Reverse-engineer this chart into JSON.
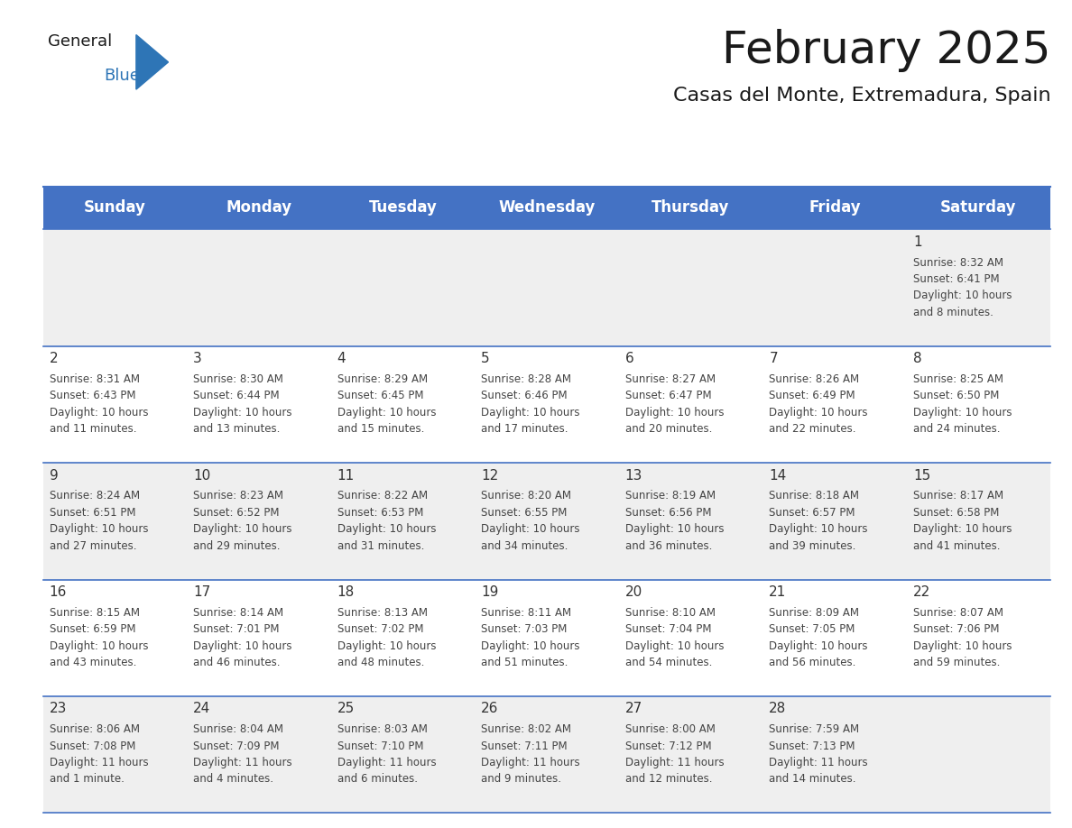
{
  "title": "February 2025",
  "subtitle": "Casas del Monte, Extremadura, Spain",
  "header_color": "#4472C4",
  "header_text_color": "#FFFFFF",
  "background_color": "#FFFFFF",
  "alt_row_color": "#EFEFEF",
  "cell_border_color": "#4472C4",
  "day_names": [
    "Sunday",
    "Monday",
    "Tuesday",
    "Wednesday",
    "Thursday",
    "Friday",
    "Saturday"
  ],
  "title_fontsize": 36,
  "subtitle_fontsize": 16,
  "header_fontsize": 12,
  "day_num_fontsize": 11,
  "cell_fontsize": 8.5,
  "days": [
    {
      "date": 1,
      "col": 6,
      "row": 0,
      "sunrise": "8:32 AM",
      "sunset": "6:41 PM",
      "daylight_hours": 10,
      "daylight_minutes": 8
    },
    {
      "date": 2,
      "col": 0,
      "row": 1,
      "sunrise": "8:31 AM",
      "sunset": "6:43 PM",
      "daylight_hours": 10,
      "daylight_minutes": 11
    },
    {
      "date": 3,
      "col": 1,
      "row": 1,
      "sunrise": "8:30 AM",
      "sunset": "6:44 PM",
      "daylight_hours": 10,
      "daylight_minutes": 13
    },
    {
      "date": 4,
      "col": 2,
      "row": 1,
      "sunrise": "8:29 AM",
      "sunset": "6:45 PM",
      "daylight_hours": 10,
      "daylight_minutes": 15
    },
    {
      "date": 5,
      "col": 3,
      "row": 1,
      "sunrise": "8:28 AM",
      "sunset": "6:46 PM",
      "daylight_hours": 10,
      "daylight_minutes": 17
    },
    {
      "date": 6,
      "col": 4,
      "row": 1,
      "sunrise": "8:27 AM",
      "sunset": "6:47 PM",
      "daylight_hours": 10,
      "daylight_minutes": 20
    },
    {
      "date": 7,
      "col": 5,
      "row": 1,
      "sunrise": "8:26 AM",
      "sunset": "6:49 PM",
      "daylight_hours": 10,
      "daylight_minutes": 22
    },
    {
      "date": 8,
      "col": 6,
      "row": 1,
      "sunrise": "8:25 AM",
      "sunset": "6:50 PM",
      "daylight_hours": 10,
      "daylight_minutes": 24
    },
    {
      "date": 9,
      "col": 0,
      "row": 2,
      "sunrise": "8:24 AM",
      "sunset": "6:51 PM",
      "daylight_hours": 10,
      "daylight_minutes": 27
    },
    {
      "date": 10,
      "col": 1,
      "row": 2,
      "sunrise": "8:23 AM",
      "sunset": "6:52 PM",
      "daylight_hours": 10,
      "daylight_minutes": 29
    },
    {
      "date": 11,
      "col": 2,
      "row": 2,
      "sunrise": "8:22 AM",
      "sunset": "6:53 PM",
      "daylight_hours": 10,
      "daylight_minutes": 31
    },
    {
      "date": 12,
      "col": 3,
      "row": 2,
      "sunrise": "8:20 AM",
      "sunset": "6:55 PM",
      "daylight_hours": 10,
      "daylight_minutes": 34
    },
    {
      "date": 13,
      "col": 4,
      "row": 2,
      "sunrise": "8:19 AM",
      "sunset": "6:56 PM",
      "daylight_hours": 10,
      "daylight_minutes": 36
    },
    {
      "date": 14,
      "col": 5,
      "row": 2,
      "sunrise": "8:18 AM",
      "sunset": "6:57 PM",
      "daylight_hours": 10,
      "daylight_minutes": 39
    },
    {
      "date": 15,
      "col": 6,
      "row": 2,
      "sunrise": "8:17 AM",
      "sunset": "6:58 PM",
      "daylight_hours": 10,
      "daylight_minutes": 41
    },
    {
      "date": 16,
      "col": 0,
      "row": 3,
      "sunrise": "8:15 AM",
      "sunset": "6:59 PM",
      "daylight_hours": 10,
      "daylight_minutes": 43
    },
    {
      "date": 17,
      "col": 1,
      "row": 3,
      "sunrise": "8:14 AM",
      "sunset": "7:01 PM",
      "daylight_hours": 10,
      "daylight_minutes": 46
    },
    {
      "date": 18,
      "col": 2,
      "row": 3,
      "sunrise": "8:13 AM",
      "sunset": "7:02 PM",
      "daylight_hours": 10,
      "daylight_minutes": 48
    },
    {
      "date": 19,
      "col": 3,
      "row": 3,
      "sunrise": "8:11 AM",
      "sunset": "7:03 PM",
      "daylight_hours": 10,
      "daylight_minutes": 51
    },
    {
      "date": 20,
      "col": 4,
      "row": 3,
      "sunrise": "8:10 AM",
      "sunset": "7:04 PM",
      "daylight_hours": 10,
      "daylight_minutes": 54
    },
    {
      "date": 21,
      "col": 5,
      "row": 3,
      "sunrise": "8:09 AM",
      "sunset": "7:05 PM",
      "daylight_hours": 10,
      "daylight_minutes": 56
    },
    {
      "date": 22,
      "col": 6,
      "row": 3,
      "sunrise": "8:07 AM",
      "sunset": "7:06 PM",
      "daylight_hours": 10,
      "daylight_minutes": 59
    },
    {
      "date": 23,
      "col": 0,
      "row": 4,
      "sunrise": "8:06 AM",
      "sunset": "7:08 PM",
      "daylight_hours": 11,
      "daylight_minutes": 1
    },
    {
      "date": 24,
      "col": 1,
      "row": 4,
      "sunrise": "8:04 AM",
      "sunset": "7:09 PM",
      "daylight_hours": 11,
      "daylight_minutes": 4
    },
    {
      "date": 25,
      "col": 2,
      "row": 4,
      "sunrise": "8:03 AM",
      "sunset": "7:10 PM",
      "daylight_hours": 11,
      "daylight_minutes": 6
    },
    {
      "date": 26,
      "col": 3,
      "row": 4,
      "sunrise": "8:02 AM",
      "sunset": "7:11 PM",
      "daylight_hours": 11,
      "daylight_minutes": 9
    },
    {
      "date": 27,
      "col": 4,
      "row": 4,
      "sunrise": "8:00 AM",
      "sunset": "7:12 PM",
      "daylight_hours": 11,
      "daylight_minutes": 12
    },
    {
      "date": 28,
      "col": 5,
      "row": 4,
      "sunrise": "7:59 AM",
      "sunset": "7:13 PM",
      "daylight_hours": 11,
      "daylight_minutes": 14
    }
  ]
}
